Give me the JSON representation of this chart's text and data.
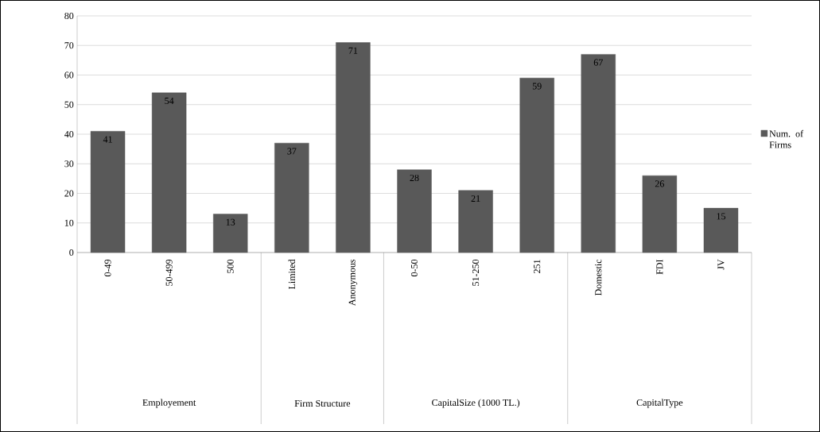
{
  "chart_data": {
    "type": "bar",
    "categories": [
      "0-49",
      "50-499",
      "500",
      "Limited",
      "Anonymous",
      "0-50",
      "51-250",
      "251",
      "Domestic",
      "FDI",
      "JV"
    ],
    "series": [
      {
        "name": "Num. of Firms",
        "color": "#595959",
        "values": [
          41,
          54,
          13,
          37,
          71,
          28,
          21,
          59,
          67,
          26,
          15
        ]
      }
    ],
    "ylim": [
      0,
      80
    ],
    "yticks": [
      0,
      10,
      20,
      30,
      40,
      50,
      60,
      70,
      80
    ],
    "grid": "y",
    "legend": "right",
    "data_labels": true,
    "annotations": [
      "Employement",
      "Firm Structure",
      "CapitalSize (1000 TL.)",
      "CapitalType"
    ]
  }
}
